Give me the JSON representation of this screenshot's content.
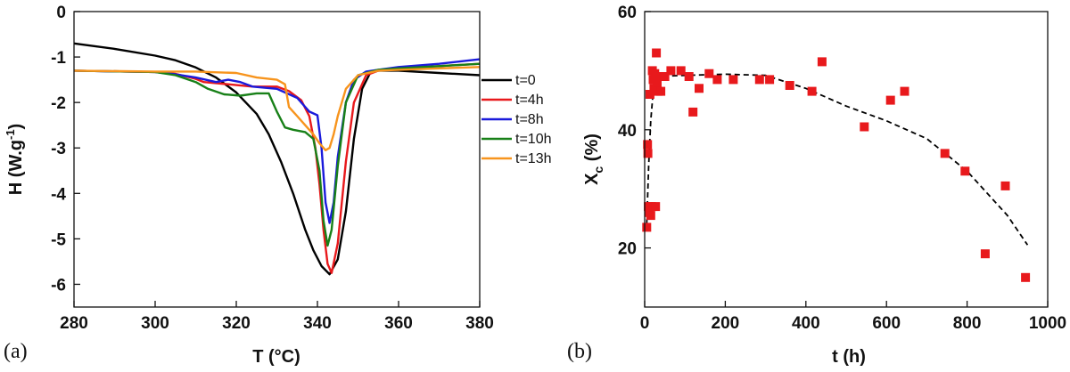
{
  "chart_data": [
    {
      "panel_label": "(a)",
      "type": "line",
      "xlabel": "T (°C)",
      "ylabel_main": "H (W.g",
      "ylabel_sup": "-1",
      "ylabel_end": ")",
      "xlim": [
        280,
        380
      ],
      "ylim": [
        -6.5,
        0
      ],
      "xticks": [
        280,
        300,
        320,
        340,
        360,
        380
      ],
      "xtick_labels": [
        "280",
        "300",
        "320",
        "340",
        "360",
        "380"
      ],
      "yticks": [
        0,
        -1,
        -2,
        -3,
        -4,
        -5,
        -6
      ],
      "ytick_labels": [
        "0",
        "-1",
        "-2",
        "-3",
        "-4",
        "-5",
        "-6"
      ],
      "legend_position": "right",
      "series": [
        {
          "name": "t=0",
          "color": "#000000",
          "x": [
            280,
            290,
            300,
            305,
            310,
            315,
            320,
            325,
            328,
            331,
            334,
            337,
            339,
            341,
            343,
            345,
            347,
            349,
            351,
            353,
            355,
            360,
            370,
            380
          ],
          "y": [
            -0.7,
            -0.82,
            -0.97,
            -1.07,
            -1.23,
            -1.45,
            -1.78,
            -2.25,
            -2.7,
            -3.3,
            -4.0,
            -4.8,
            -5.25,
            -5.6,
            -5.78,
            -5.45,
            -4.4,
            -2.8,
            -1.7,
            -1.35,
            -1.3,
            -1.3,
            -1.35,
            -1.4
          ]
        },
        {
          "name": "t=4h",
          "color": "#e8191c",
          "x": [
            280,
            300,
            305,
            310,
            312,
            318,
            324,
            330,
            333,
            336,
            338,
            339.5,
            340.5,
            341.5,
            342.5,
            343.5,
            345,
            347,
            349,
            352,
            355,
            360,
            370,
            380
          ],
          "y": [
            -1.3,
            -1.33,
            -1.37,
            -1.48,
            -1.55,
            -1.6,
            -1.65,
            -1.65,
            -1.75,
            -1.95,
            -2.3,
            -3.0,
            -3.8,
            -4.8,
            -5.55,
            -5.75,
            -5.1,
            -3.3,
            -2.0,
            -1.4,
            -1.3,
            -1.25,
            -1.2,
            -1.15
          ]
        },
        {
          "name": "t=8h",
          "color": "#1a1adb",
          "x": [
            280,
            300,
            305,
            310,
            315,
            318,
            321,
            324,
            330,
            335,
            338,
            340,
            341,
            342,
            343,
            344,
            345,
            347,
            349,
            352,
            355,
            360,
            370,
            380
          ],
          "y": [
            -1.3,
            -1.33,
            -1.38,
            -1.45,
            -1.55,
            -1.5,
            -1.55,
            -1.65,
            -1.7,
            -1.9,
            -2.2,
            -2.28,
            -3.0,
            -4.2,
            -4.65,
            -4.2,
            -3.2,
            -2.0,
            -1.5,
            -1.32,
            -1.28,
            -1.22,
            -1.15,
            -1.05
          ]
        },
        {
          "name": "t=10h",
          "color": "#188018",
          "x": [
            280,
            300,
            305,
            310,
            313,
            317,
            321,
            325,
            328,
            330,
            332,
            334,
            337,
            339,
            340.5,
            341.5,
            342.5,
            343.5,
            345,
            347,
            350,
            355,
            360,
            370,
            380
          ],
          "y": [
            -1.3,
            -1.33,
            -1.4,
            -1.55,
            -1.7,
            -1.82,
            -1.85,
            -1.8,
            -1.8,
            -2.2,
            -2.55,
            -2.6,
            -2.65,
            -2.8,
            -3.5,
            -4.6,
            -5.15,
            -4.8,
            -3.4,
            -2.0,
            -1.4,
            -1.28,
            -1.25,
            -1.2,
            -1.15
          ]
        },
        {
          "name": "t=13h",
          "color": "#f7941d",
          "x": [
            280,
            300,
            310,
            320,
            325,
            330,
            332,
            333,
            335,
            337,
            339,
            340.5,
            342,
            343,
            344,
            345,
            347,
            350,
            355,
            360,
            370,
            380
          ],
          "y": [
            -1.3,
            -1.32,
            -1.32,
            -1.35,
            -1.45,
            -1.5,
            -1.6,
            -2.1,
            -2.3,
            -2.5,
            -2.7,
            -2.9,
            -3.05,
            -3.0,
            -2.7,
            -2.3,
            -1.7,
            -1.4,
            -1.3,
            -1.28,
            -1.25,
            -1.22
          ]
        }
      ]
    },
    {
      "panel_label": "(b)",
      "type": "scatter",
      "xlabel": "t (h)",
      "ylabel_main": "X",
      "ylabel_sub": "c",
      "ylabel_end": " (%)",
      "xlim": [
        0,
        1000
      ],
      "ylim": [
        10,
        60
      ],
      "xticks": [
        0,
        200,
        400,
        600,
        800,
        1000
      ],
      "xtick_labels": [
        "0",
        "200",
        "400",
        "600",
        "800",
        "1000"
      ],
      "yticks": [
        20,
        40,
        60
      ],
      "ytick_labels": [
        "20",
        "40",
        "60"
      ],
      "series": [
        {
          "kind": "points",
          "marker": "square",
          "color": "#e8191c",
          "x": [
            5,
            7,
            8,
            9,
            11,
            13,
            15,
            17,
            19,
            21,
            23,
            25,
            27,
            29,
            31,
            33,
            35,
            40,
            45,
            50,
            65,
            90,
            110,
            120,
            135,
            160,
            180,
            220,
            285,
            310,
            360,
            415,
            440,
            545,
            610,
            645,
            745,
            795,
            845,
            895,
            945
          ],
          "y": [
            23.5,
            37.5,
            36,
            27,
            26,
            46,
            25.5,
            27,
            50,
            48.5,
            47,
            49.5,
            27,
            53,
            47.5,
            46.5,
            49,
            46.5,
            49,
            49,
            50,
            50,
            49,
            43,
            47,
            49.5,
            48.5,
            48.5,
            48.5,
            48.5,
            47.5,
            46.5,
            51.5,
            40.5,
            45,
            46.5,
            36,
            33,
            19,
            30.5,
            15
          ]
        },
        {
          "kind": "fit",
          "style": "dashed",
          "color": "#000000",
          "x": [
            5,
            10,
            15,
            20,
            30,
            40,
            60,
            100,
            200,
            300,
            400,
            500,
            600,
            700,
            800,
            900,
            950
          ],
          "y": [
            24,
            34,
            41.5,
            45.5,
            48,
            48.8,
            49.1,
            49.2,
            49.4,
            49.2,
            47,
            44,
            41.5,
            38.5,
            33,
            25.5,
            20.5
          ]
        }
      ]
    }
  ]
}
